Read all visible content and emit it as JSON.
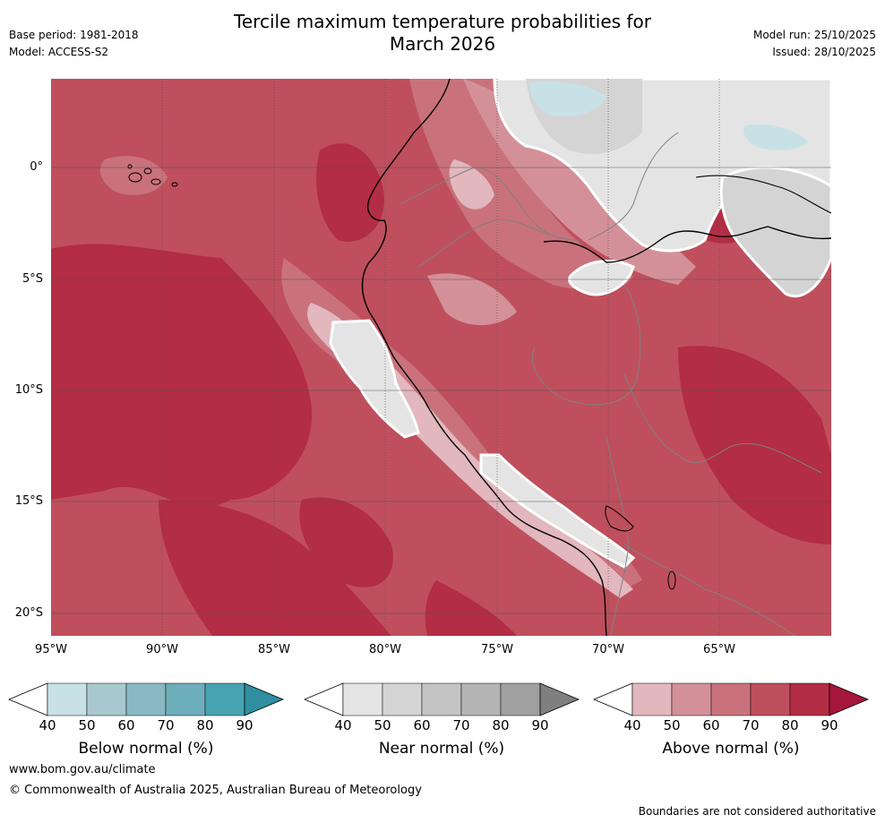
{
  "header": {
    "title_line1": "Tercile maximum temperature probabilities for",
    "title_line2": "March 2026",
    "base_period": "Base period: 1981-2018",
    "model": "Model: ACCESS-S2",
    "model_run": "Model run: 25/10/2025",
    "issued": "Issued: 28/10/2025"
  },
  "map": {
    "lat_labels": [
      "0°",
      "5°S",
      "10°S",
      "15°S",
      "20°S"
    ],
    "lon_labels": [
      "95°W",
      "90°W",
      "85°W",
      "80°W",
      "75°W",
      "70°W",
      "65°W"
    ]
  },
  "legend": {
    "below": {
      "caption": "Below normal (%)",
      "ticks": [
        "40",
        "50",
        "60",
        "70",
        "80",
        "90"
      ],
      "colors": [
        "#ffffff",
        "#c8e1e6",
        "#a7c9cf",
        "#8ab8c3",
        "#6caeba",
        "#48a3b1",
        "#2f8ea0"
      ]
    },
    "near": {
      "caption": "Near normal (%)",
      "ticks": [
        "40",
        "50",
        "60",
        "70",
        "80",
        "90"
      ],
      "colors": [
        "#ffffff",
        "#e4e4e4",
        "#d4d4d4",
        "#c4c4c4",
        "#b4b4b4",
        "#a0a0a0",
        "#7f7f7f"
      ]
    },
    "above": {
      "caption": "Above normal (%)",
      "ticks": [
        "40",
        "50",
        "60",
        "70",
        "80",
        "90"
      ],
      "colors": [
        "#ffffff",
        "#e2b7bd",
        "#d49099",
        "#c9727c",
        "#bf4f5d",
        "#b32d44",
        "#a5163a"
      ]
    }
  },
  "footer": {
    "url": "www.bom.gov.au/climate",
    "copyright": "© Commonwealth of Australia 2025, Australian Bureau of Meteorology",
    "disclaimer": "Boundaries are not considered authoritative"
  }
}
